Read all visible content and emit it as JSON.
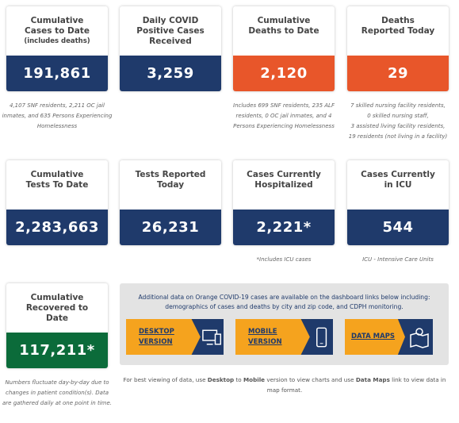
{
  "cards": [
    {
      "title": "Cumulative Cases to Date",
      "subtitle": "(includes deaths)",
      "value": "191,861",
      "note": [
        "4,107 SNF residents, 2,211 OC jail inmates, and 635 Persons Experiencing Homelessness"
      ]
    },
    {
      "title": "Daily COVID Positive Cases Received",
      "value": "3,259"
    },
    {
      "title": "Cumulative Deaths to Date",
      "value": "2,120",
      "note": [
        "Includes 699 SNF residents, 235 ALF residents, 0 OC jail inmates, and 4 Persons Experiencing Homelessness"
      ]
    },
    {
      "title": "Deaths Reported Today",
      "value": "29",
      "note": [
        "7 skilled nursing facility residents,",
        "0 skilled nursing staff,",
        "3 assisted living facility residents,",
        "19 residents (not living in a facility)"
      ]
    },
    {
      "title": "Cumulative Tests To Date",
      "value": "2,283,663"
    },
    {
      "title": "Tests Reported Today",
      "value": "26,231"
    },
    {
      "title": "Cases Currently Hospitalized",
      "value": "2,221*",
      "note": [
        "*Includes ICU cases"
      ]
    },
    {
      "title": "Cases Currently in ICU",
      "value": "544",
      "note": [
        "ICU - Intensive Care Units"
      ]
    },
    {
      "title": "Cumulative Recovered to Date",
      "value": "117,211*",
      "note": [
        "Numbers fluctuate day-by-day due to changes in patient condition(s). Data are gathered daily at one point in time."
      ]
    }
  ],
  "panel": {
    "text": "Additional data on Orange COVID-19 cases are available on the dashboard links below including: demographics of cases and deaths by city and zip code, and CDPH monitoring.",
    "buttons": [
      {
        "label": "DESKTOP VERSION"
      },
      {
        "label": "MOBILE VERSION"
      },
      {
        "label": "DATA MAPS"
      }
    ]
  },
  "footer": [
    "For best viewing of data, use ",
    "Desktop",
    " to ",
    "Mobile",
    " version to view charts and use ",
    "Data Maps",
    " link to view data in map format."
  ]
}
